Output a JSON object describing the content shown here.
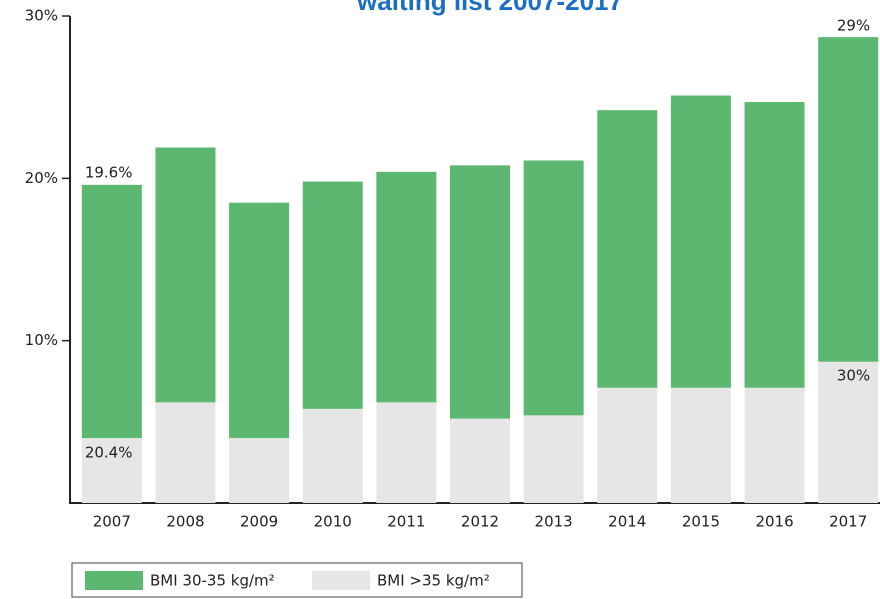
{
  "chart_data": {
    "type": "stacked_bar",
    "title": "waiting list 2007-2017",
    "categories": [
      "2007",
      "2008",
      "2009",
      "2010",
      "2011",
      "2012",
      "2013",
      "2014",
      "2015",
      "2016",
      "2017"
    ],
    "series": [
      {
        "name": "BMI >35 kg/m²",
        "color": "#e6e6e6",
        "values": [
          4.0,
          6.2,
          4.0,
          5.8,
          6.2,
          5.2,
          5.4,
          7.1,
          7.1,
          7.1,
          8.7
        ]
      },
      {
        "name": "BMI 30-35 kg/m²",
        "color": "#5cb870",
        "values": [
          15.6,
          15.7,
          14.5,
          14.0,
          14.2,
          15.6,
          15.7,
          17.1,
          18.0,
          17.6,
          20.0
        ]
      }
    ],
    "ylim": [
      0,
      30
    ],
    "yticks": [
      {
        "value": 10,
        "label": "10%"
      },
      {
        "value": 20,
        "label": "20%"
      },
      {
        "value": 30,
        "label": "30%"
      }
    ],
    "annotations": [
      {
        "text": "19.6%"
      },
      {
        "text": "20.4%"
      },
      {
        "text": "29%"
      },
      {
        "text": "30%"
      }
    ]
  }
}
